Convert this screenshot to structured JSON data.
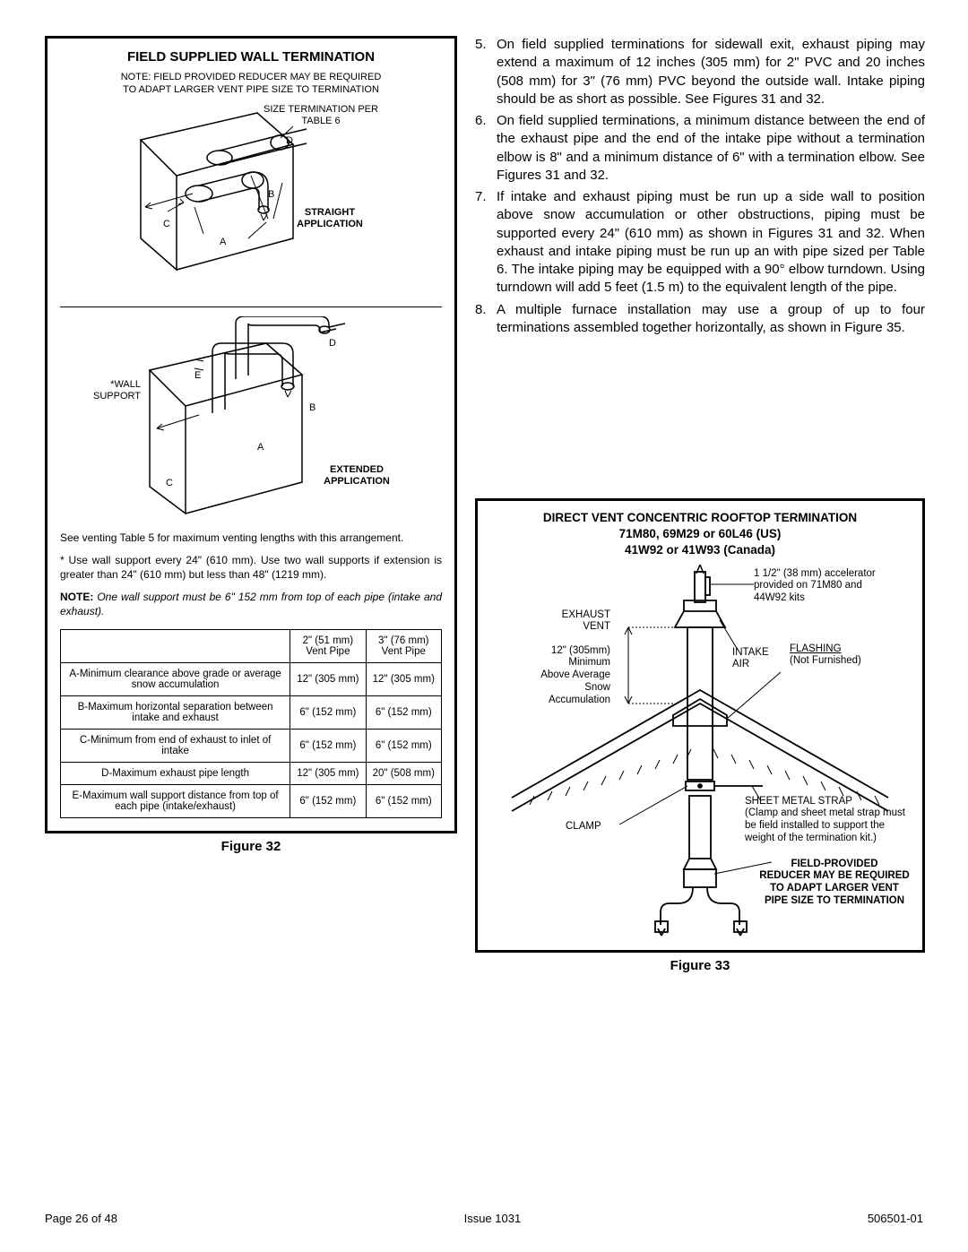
{
  "figure32": {
    "box_title": "FIELD SUPPLIED WALL TERMINATION",
    "note_top": "NOTE: FIELD PROVIDED REDUCER MAY BE REQUIRED TO ADAPT LARGER VENT PIPE SIZE TO TERMINATION",
    "size_label": "SIZE TERMINATION PER TABLE 6",
    "straight_label": "STRAIGHT APPLICATION",
    "wall_support_label": "*WALL SUPPORT",
    "extended_label": "EXTENDED APPLICATION",
    "letters": {
      "a": "A",
      "b": "B",
      "c": "C",
      "d": "D",
      "e": "E"
    },
    "para1": "See venting Table 5 for maximum venting lengths with this arrangement.",
    "para2": "* Use wall support every 24\" (610 mm). Use two wall supports if extension is greater than 24\" (610 mm) but less than 48\" (1219 mm).",
    "para3_bold": "NOTE:",
    "para3_ital": " One wall support must be 6\" 152 mm from top of each pipe (intake and exhaust).",
    "caption": "Figure 32",
    "table": {
      "col1": "2\" (51 mm) Vent Pipe",
      "col2": "3\" (76 mm) Vent Pipe",
      "rows": [
        {
          "label": "A-Minimum clearance above grade or average snow accumulation",
          "v1": "12\" (305 mm)",
          "v2": "12\" (305 mm)"
        },
        {
          "label": "B-Maximum horizontal separation between intake and exhaust",
          "v1": "6\" (152 mm)",
          "v2": "6\" (152 mm)"
        },
        {
          "label": "C-Minimum from end of exhaust to inlet of intake",
          "v1": "6\" (152 mm)",
          "v2": "6\" (152 mm)"
        },
        {
          "label": "D-Maximum exhaust pipe length",
          "v1": "12\" (305 mm)",
          "v2": "20\" (508 mm)"
        },
        {
          "label": "E-Maximum wall support distance from top of each pipe (intake/exhaust)",
          "v1": "6\" (152 mm)",
          "v2": "6\" (152 mm)"
        }
      ]
    }
  },
  "instructions": [
    {
      "n": "5.",
      "t": "On field supplied terminations for sidewall exit, exhaust piping may extend a maximum of 12 inches (305 mm) for 2\" PVC and 20 inches (508 mm) for 3\" (76 mm) PVC beyond the outside wall. Intake piping should be as short as possible. See Figures 31 and 32."
    },
    {
      "n": "6.",
      "t": "On field supplied terminations, a minimum distance between the end of the exhaust pipe and the end of the intake pipe without a termination elbow is 8\" and a minimum distance of 6\" with a termination elbow. See Figures 31 and 32."
    },
    {
      "n": "7.",
      "t": "If intake and exhaust piping must be run up a side wall to position above snow accumulation or other obstructions, piping must be supported every 24\" (610 mm) as shown in Figures 31 and 32. When exhaust and intake piping must be run up an with pipe sized per Table 6. The intake piping may be equipped with a 90° elbow turndown. Using turndown will add 5 feet (1.5 m) to the equivalent length of the pipe."
    },
    {
      "n": "8.",
      "t": "A multiple furnace installation may use a group of up to four terminations assembled together horizontally, as shown in Figure 35."
    }
  ],
  "figure33": {
    "title_l1": "DIRECT VENT CONCENTRIC ROOFTOP TERMINATION",
    "title_l2": "71M80, 69M29 or 60L46 (US)",
    "title_l3": "41W92 or 41W93 (Canada)",
    "exhaust_vent": "EXHAUST VENT",
    "accel": "1 1/2\" (38 mm) accelerator provided on 71M80 and 44W92 kits",
    "min_snow_l1": "12\" (305mm)",
    "min_snow_l2": "Minimum",
    "min_snow_l3": "Above Average",
    "min_snow_l4": "Snow",
    "min_snow_l5": "Accumulation",
    "intake_air": "INTAKE AIR",
    "flashing_l1": "FLASHING",
    "flashing_l2": "(Not Furnished)",
    "sheet_metal_l1": "SHEET METAL STRAP",
    "sheet_metal_l2": "(Clamp and sheet metal strap must be field installed to support the weight of the termination kit.)",
    "clamp": "CLAMP",
    "reducer_l1": "FIELD-PROVIDED",
    "reducer_l2": "REDUCER MAY BE REQUIRED",
    "reducer_l3": "TO ADAPT LARGER VENT",
    "reducer_l4": "PIPE SIZE TO TERMINATION",
    "caption": "Figure 33"
  },
  "footer": {
    "left": "Page 26 of 48",
    "center": "Issue 1031",
    "right": "506501-01"
  }
}
